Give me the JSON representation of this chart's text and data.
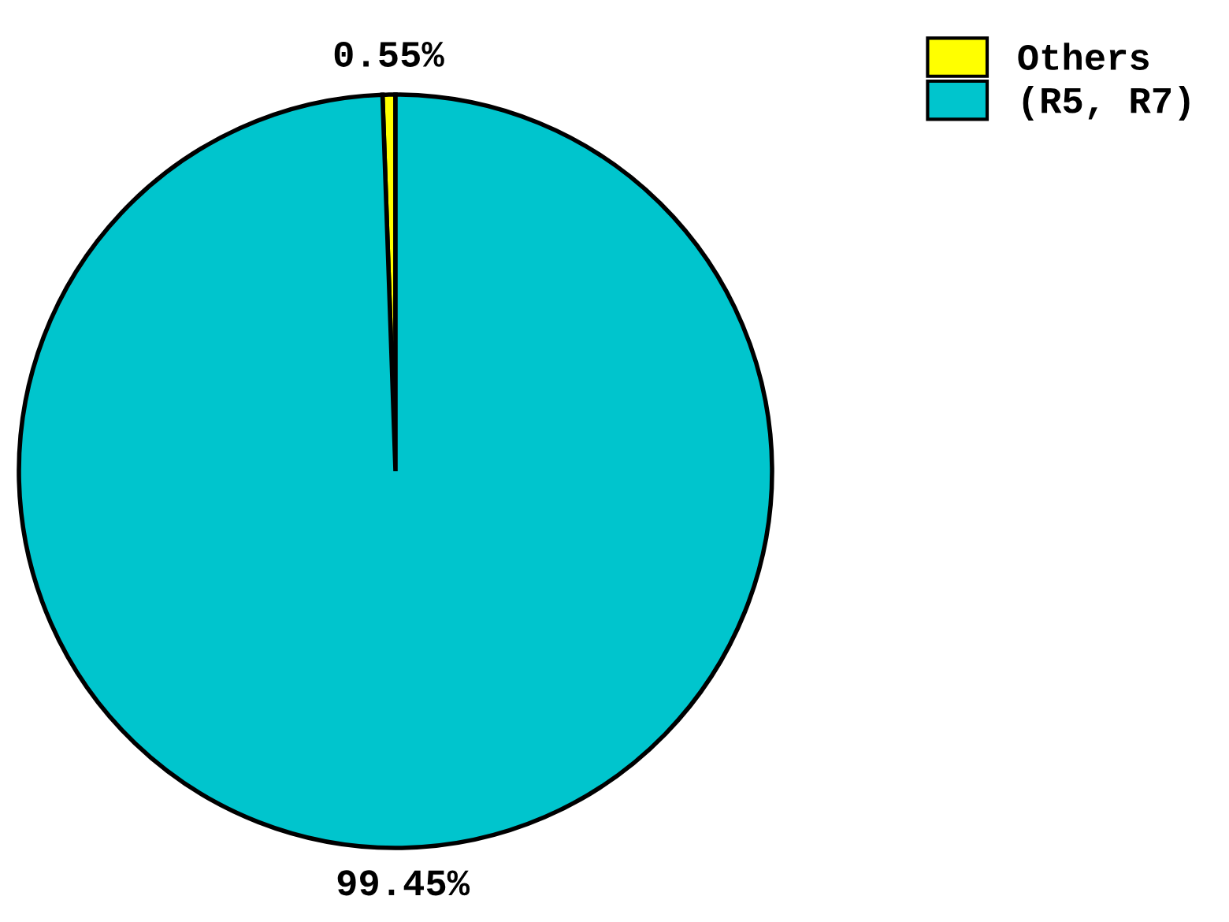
{
  "chart_data": {
    "type": "pie",
    "categories": [
      "Others",
      "(R5, R7)"
    ],
    "values": [
      0.55,
      99.45
    ],
    "colors": [
      "#ffff00",
      "#00c5cd"
    ],
    "value_labels": [
      "0.55%",
      "99.45%"
    ],
    "legend": "top right"
  }
}
